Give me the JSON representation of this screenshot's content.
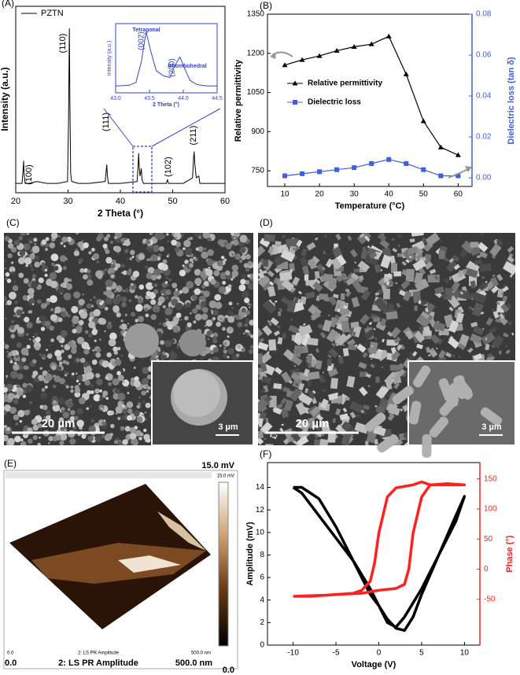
{
  "chart_data": [
    {
      "type": "line",
      "panel_label": "(A)",
      "xlabel": "2 Theta (°)",
      "ylabel": "Intensity (a.u.)",
      "xlim": [
        20,
        60
      ],
      "xticks": [
        20,
        30,
        40,
        50,
        60
      ],
      "ylim": [
        0,
        100
      ],
      "series": [
        {
          "name": "PZTN",
          "color": "#000000",
          "x": [
            20,
            21.2,
            21.4,
            21.5,
            21.6,
            21.8,
            22.5,
            24,
            26,
            28,
            29.9,
            30.1,
            30.25,
            30.35,
            30.5,
            30.7,
            32,
            34,
            37.1,
            37.3,
            37.4,
            37.5,
            37.7,
            40,
            43.2,
            43.4,
            43.5,
            43.6,
            43.75,
            43.9,
            44.0,
            44.15,
            44.4,
            46,
            48.8,
            49.0,
            49.2,
            52,
            53.8,
            54.0,
            54.1,
            54.25,
            54.5,
            55.0,
            55.2,
            56,
            58,
            60
          ],
          "values": [
            5,
            5,
            12,
            17,
            10,
            5,
            5,
            6,
            5,
            5,
            6,
            40,
            88,
            50,
            10,
            6,
            5,
            5,
            6,
            12,
            15,
            10,
            5,
            5,
            6,
            15,
            21,
            14,
            9,
            11,
            13,
            7,
            5,
            5,
            5,
            7,
            5,
            5,
            8,
            19,
            22,
            15,
            8,
            9,
            5,
            5,
            5,
            5
          ]
        }
      ],
      "annotations": [
        "(100)",
        "(110)",
        "(111)",
        "(102)",
        "(211)"
      ]
    },
    {
      "type": "line",
      "xlabel": "2 Theta (°)",
      "ylabel": "Intensity (a.u.)",
      "xlim": [
        43.0,
        44.5
      ],
      "xticks": [
        {
          "value": 43,
          "label": "43.0"
        },
        {
          "value": 43.5,
          "label": "43.5"
        },
        {
          "value": 44,
          "label": "44.0"
        },
        {
          "value": 44.5,
          "label": "44.5"
        }
      ],
      "ylim": [
        0,
        100
      ],
      "series": [
        {
          "color": "#3344cc",
          "x": [
            43.0,
            43.2,
            43.3,
            43.38,
            43.45,
            43.52,
            43.6,
            43.7,
            43.8,
            43.88,
            43.95,
            44.02,
            44.1,
            44.2,
            44.35,
            44.5
          ],
          "values": [
            10,
            11,
            15,
            45,
            88,
            60,
            32,
            25,
            22,
            40,
            52,
            35,
            18,
            12,
            10,
            10
          ]
        }
      ],
      "annotations": [
        "Tetragonal",
        "Rhombohedral",
        "(002)",
        "(200)"
      ]
    },
    {
      "type": "line",
      "panel_label": "(B)",
      "xlabel": "Temperature (°C)",
      "ylabel": "Relative permittivity",
      "y2label": "Dielectric loss (tan δ)",
      "xlim": [
        5,
        64
      ],
      "xticks": [
        10,
        20,
        30,
        40,
        50,
        60
      ],
      "ylim": [
        690,
        1350
      ],
      "yticks": [
        750,
        900,
        1050,
        1200,
        1350
      ],
      "y2lim": [
        -0.0042,
        0.08
      ],
      "y2ticks": [
        {
          "value": 0,
          "label": "0.00"
        },
        {
          "value": 0.02,
          "label": "0.02"
        },
        {
          "value": 0.04,
          "label": "0.04"
        },
        {
          "value": 0.06,
          "label": "0.06"
        },
        {
          "value": 0.08,
          "label": "0.08"
        }
      ],
      "legend": "center-left",
      "x": [
        10,
        15,
        20,
        25,
        30,
        35,
        40,
        45,
        50,
        55,
        60
      ],
      "series": [
        {
          "name": "Relative permittivity",
          "color": "#000000",
          "marker": "triangle",
          "values": [
            1155,
            1175,
            1190,
            1210,
            1225,
            1235,
            1265,
            1120,
            940,
            840,
            810
          ]
        },
        {
          "name": "Dielectric loss",
          "color": "#3f5fe0",
          "marker": "square",
          "axis": "y2",
          "values": [
            0.001,
            0.002,
            0.003,
            0.004,
            0.005,
            0.007,
            0.009,
            0.007,
            0.004,
            0.001,
            0.001
          ]
        }
      ]
    },
    {
      "type": "line",
      "panel_label": "(F)",
      "xlabel": "Voltage (V)",
      "ylabel": "Amplitude (mV)",
      "y2label": "Phase (°)",
      "xlim": [
        -13,
        11.8
      ],
      "xticks": [
        -10,
        -5,
        0,
        5,
        10
      ],
      "ylim": [
        0,
        16.2
      ],
      "yticks": [
        0,
        2,
        4,
        6,
        8,
        10,
        12,
        14
      ],
      "y2lim": [
        -126,
        177
      ],
      "y2ticks": [
        -50,
        0,
        50,
        100,
        150
      ],
      "series": [
        {
          "color": "#000000",
          "x": [
            -10,
            -9,
            -7,
            -5,
            -3,
            -1,
            0,
            1,
            2,
            3,
            5,
            7,
            9,
            10,
            9,
            7,
            5,
            4,
            3,
            2,
            1,
            0,
            -1,
            -3,
            -5,
            -7,
            -9,
            -10
          ],
          "values": [
            14,
            13.5,
            11.5,
            9.5,
            7.5,
            5,
            3.5,
            2,
            1.6,
            2.5,
            5,
            8,
            11.5,
            13.2,
            11,
            8,
            4.5,
            2.5,
            1.3,
            1.5,
            2.3,
            3.5,
            4.5,
            7.5,
            10.5,
            13,
            14,
            14
          ]
        },
        {
          "color": "#ff2020",
          "axis": "y2",
          "x": [
            -10,
            -6,
            -3,
            -2,
            -1,
            -0.5,
            0,
            0.5,
            1,
            2,
            4,
            5,
            6,
            8,
            10,
            8,
            6,
            5,
            4,
            3.5,
            3,
            2,
            0,
            -2,
            -5,
            -8,
            -10
          ],
          "values": [
            -45,
            -43,
            -40,
            -35,
            -20,
            10,
            60,
            90,
            120,
            135,
            140,
            145,
            140,
            140,
            140,
            142,
            140,
            120,
            60,
            0,
            -25,
            -32,
            -35,
            -40,
            -42,
            -45,
            -45
          ]
        }
      ]
    }
  ],
  "images": [
    {
      "panel_label": "(C)",
      "scale_bar": "20 µm",
      "inset_scale_bar": "3 µm"
    },
    {
      "panel_label": "(D)",
      "scale_bar": "20 µm",
      "inset_scale_bar": "3 µm"
    },
    {
      "panel_label": "(E)",
      "color_max": "15.0 mV",
      "small_color_max": "15.0 mV",
      "x_min": "0.0",
      "small_x_min": "0.0",
      "channel": "2: LS PR Amplitude",
      "small_channel": "2: LS PR Amplitude",
      "x_max": "500.0 nm",
      "small_x_max": "500.0 nm",
      "color_min": "0.0"
    }
  ]
}
